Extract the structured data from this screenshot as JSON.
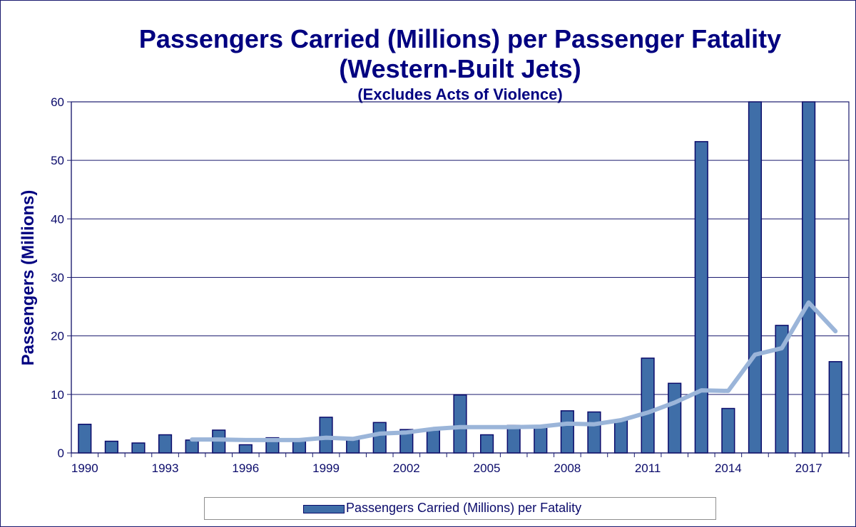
{
  "chart_data": {
    "type": "bar",
    "title": "Passengers Carried (Millions) per Passenger Fatality",
    "subtitle": "(Western-Built Jets)",
    "subtitle2": "(Excludes Acts of Violence)",
    "ylabel": "Passengers (Millions)",
    "ylim": [
      0,
      60
    ],
    "yticks": [
      0,
      10,
      20,
      30,
      40,
      50,
      60
    ],
    "categories": [
      "1990",
      "1991",
      "1992",
      "1993",
      "1994",
      "1995",
      "1996",
      "1997",
      "1998",
      "1999",
      "2000",
      "2001",
      "2002",
      "2003",
      "2004",
      "2005",
      "2006",
      "2007",
      "2008",
      "2009",
      "2010",
      "2011",
      "2012",
      "2013",
      "2014",
      "2015",
      "2016",
      "2017",
      "2018"
    ],
    "xtick_labels": [
      "1990",
      "1993",
      "1996",
      "1999",
      "2002",
      "2005",
      "2008",
      "2011",
      "2014",
      "2017"
    ],
    "series": [
      {
        "name": "Passengers Carried (Millions) per Fatality",
        "kind": "bar",
        "color": "#3f6ea8",
        "values": [
          4.9,
          2.0,
          1.7,
          3.1,
          2.2,
          3.9,
          1.4,
          2.6,
          2.3,
          6.1,
          2.3,
          5.2,
          4.0,
          4.2,
          9.9,
          3.1,
          4.7,
          4.5,
          7.2,
          7.0,
          5.6,
          16.2,
          11.9,
          53.2,
          7.6,
          60,
          21.8,
          60,
          15.6
        ]
      },
      {
        "kind": "line",
        "color": "#9bb5d9",
        "values": [
          null,
          null,
          null,
          null,
          2.3,
          2.3,
          2.2,
          2.2,
          2.2,
          2.6,
          2.4,
          3.3,
          3.5,
          4.1,
          4.4,
          4.4,
          4.4,
          4.5,
          5.0,
          4.9,
          5.6,
          6.9,
          8.6,
          10.7,
          10.6,
          16.8,
          17.9,
          25.7,
          20.8
        ]
      }
    ],
    "grid": true,
    "legend_position": "bottom"
  }
}
